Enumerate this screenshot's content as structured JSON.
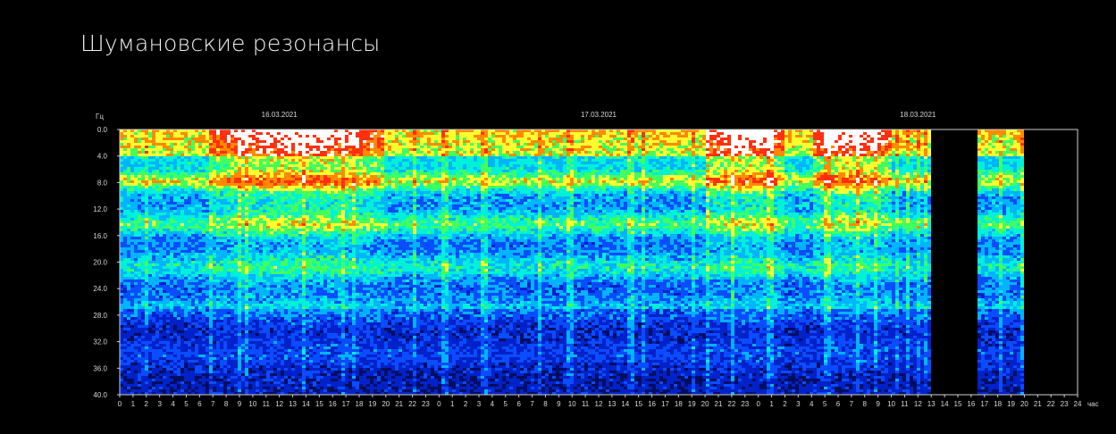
{
  "title": "Шумановские резонансы",
  "colors": {
    "background": "#000000",
    "axis": "#cfcfcf",
    "text": "#dcdcdc",
    "colormap": [
      "#000e60",
      "#0022c8",
      "#0a4cff",
      "#00b4ff",
      "#00f0d8",
      "#40ff60",
      "#ffff30",
      "#ff8a00",
      "#ff3010",
      "#ffffff"
    ]
  },
  "chart_data": {
    "type": "heatmap",
    "title": "Шумановские резонансы",
    "ylabel": "Гц",
    "xlabel": "час",
    "ylim": [
      0,
      40
    ],
    "y_ticks": [
      "0.0",
      "4.0",
      "8.0",
      "12.0",
      "16.0",
      "20.0",
      "24.0",
      "28.0",
      "32.0",
      "36.0",
      "40.0"
    ],
    "x_ticks": [
      "0",
      "1",
      "2",
      "3",
      "4",
      "5",
      "6",
      "7",
      "8",
      "9",
      "10",
      "11",
      "12",
      "13",
      "14",
      "15",
      "16",
      "17",
      "18",
      "19",
      "20",
      "21",
      "22",
      "23",
      "0",
      "1",
      "2",
      "3",
      "4",
      "5",
      "6",
      "7",
      "8",
      "9",
      "10",
      "11",
      "12",
      "13",
      "14",
      "15",
      "16",
      "17",
      "18",
      "19",
      "20",
      "21",
      "22",
      "23",
      "0",
      "1",
      "2",
      "3",
      "4",
      "5",
      "6",
      "7",
      "8",
      "9",
      "10",
      "11",
      "12",
      "13",
      "14",
      "15",
      "16",
      "17",
      "18",
      "19",
      "20",
      "21",
      "22",
      "23",
      "24"
    ],
    "dates": [
      {
        "label": "16.03.2021",
        "hour": 12
      },
      {
        "label": "17.03.2021",
        "hour": 36
      },
      {
        "label": "18.03.2021",
        "hour": 60
      }
    ],
    "x_range_hours": [
      0,
      72
    ],
    "data_segments_hours": [
      [
        0,
        61
      ],
      [
        64.5,
        68.1
      ]
    ],
    "resonance_bands_hz": [
      7.8,
      14.3,
      20.8,
      27.3,
      33.8
    ],
    "high_activity_hours": [
      [
        7,
        20
      ],
      [
        44,
        50
      ],
      [
        52,
        58
      ]
    ]
  }
}
